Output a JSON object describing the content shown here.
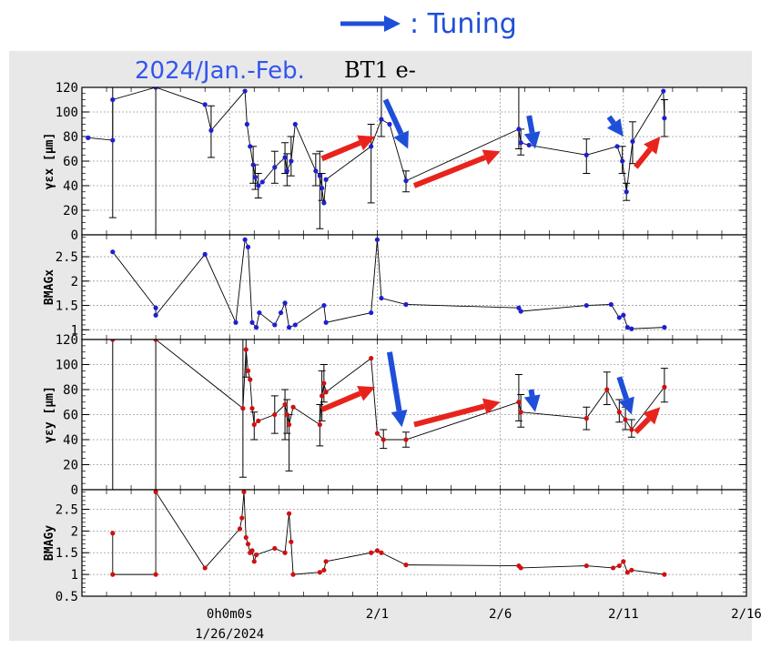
{
  "header": {
    "legend_label": ": Tuning",
    "period_label": "2024/Jan.-Feb.",
    "beam_label": "BT1 e-"
  },
  "colors": {
    "background": "#e8e8e8",
    "tuning_arrow": "#1f4fd8",
    "trend_arrow": "#e8231d",
    "x_series": "#1f1fd0",
    "y_series": "#d01010",
    "period_text": "#3355ee"
  },
  "xaxis": {
    "range": [
      "2024-01-20",
      "2024-02-16"
    ],
    "ticks": [
      {
        "date": "2024-01-26",
        "label": "0h0m0s"
      },
      {
        "date": "2024-02-01",
        "label": "2/1"
      },
      {
        "date": "2024-02-06",
        "label": "2/6"
      },
      {
        "date": "2024-02-11",
        "label": "2/11"
      },
      {
        "date": "2024-02-16",
        "label": "2/16"
      }
    ],
    "sub_label": "1/26/2024"
  },
  "chart_data": [
    {
      "type": "line",
      "ylabel": "γεx [μm]",
      "ylim": [
        0,
        120
      ],
      "yticks": [
        "0",
        "20",
        "40",
        "60",
        "80",
        "100",
        "120"
      ],
      "grid": true,
      "series": [
        {
          "color": "x",
          "points": [
            {
              "x": "2024-01-20 06:00",
              "y": 79
            },
            {
              "x": "2024-01-21 06:00",
              "y": 77,
              "lo": 14,
              "hi": 120
            },
            {
              "x": "2024-01-21 06:00",
              "y": 110
            },
            {
              "x": "2024-01-23 00:00",
              "y": 120,
              "lo": 0,
              "hi": 120
            },
            {
              "x": "2024-01-25 00:00",
              "y": 106
            },
            {
              "x": "2024-01-25 06:00",
              "y": 85,
              "lo": 63,
              "hi": 105
            },
            {
              "x": "2024-01-26 15:00",
              "y": 117
            },
            {
              "x": "2024-01-26 17:00",
              "y": 90
            },
            {
              "x": "2024-01-26 20:00",
              "y": 72
            },
            {
              "x": "2024-01-26 23:00",
              "y": 57,
              "lo": 42,
              "hi": 72
            },
            {
              "x": "2024-01-27 01:00",
              "y": 47,
              "lo": 37,
              "hi": 57
            },
            {
              "x": "2024-01-27 04:00",
              "y": 40,
              "lo": 30,
              "hi": 50
            },
            {
              "x": "2024-01-27 08:00",
              "y": 43
            },
            {
              "x": "2024-01-27 20:00",
              "y": 55,
              "lo": 42,
              "hi": 68
            },
            {
              "x": "2024-01-28 06:00",
              "y": 63,
              "lo": 50,
              "hi": 75
            },
            {
              "x": "2024-01-28 08:00",
              "y": 52,
              "lo": 40,
              "hi": 66
            },
            {
              "x": "2024-01-28 12:00",
              "y": 60,
              "lo": 48,
              "hi": 80
            },
            {
              "x": "2024-01-28 16:00",
              "y": 90
            },
            {
              "x": "2024-01-29 12:00",
              "y": 52,
              "lo": 40,
              "hi": 66
            },
            {
              "x": "2024-01-29 16:00",
              "y": 48,
              "lo": 5,
              "hi": 68
            },
            {
              "x": "2024-01-29 18:00",
              "y": 38,
              "lo": 28,
              "hi": 50
            },
            {
              "x": "2024-01-29 20:00",
              "y": 26
            },
            {
              "x": "2024-01-29 22:00",
              "y": 45
            },
            {
              "x": "2024-01-31 18:00",
              "y": 72,
              "lo": 26,
              "hi": 90
            },
            {
              "x": "2024-02-01 04:00",
              "y": 94,
              "lo": 80,
              "hi": 120
            },
            {
              "x": "2024-02-01 12:00",
              "y": 90
            },
            {
              "x": "2024-02-02 04:00",
              "y": 44,
              "lo": 35,
              "hi": 52
            },
            {
              "x": "2024-02-06 18:00",
              "y": 86,
              "lo": 70,
              "hi": 120
            },
            {
              "x": "2024-02-06 20:00",
              "y": 75,
              "lo": 65,
              "hi": 86
            },
            {
              "x": "2024-02-07 04:00",
              "y": 73
            },
            {
              "x": "2024-02-09 12:00",
              "y": 65,
              "lo": 50,
              "hi": 78
            },
            {
              "x": "2024-02-10 18:00",
              "y": 72
            },
            {
              "x": "2024-02-10 23:00",
              "y": 60,
              "lo": 50,
              "hi": 72
            },
            {
              "x": "2024-02-11 03:00",
              "y": 35,
              "lo": 28,
              "hi": 42
            },
            {
              "x": "2024-02-11 09:00",
              "y": 76,
              "lo": 58,
              "hi": 92
            },
            {
              "x": "2024-02-12 15:00",
              "y": 117
            },
            {
              "x": "2024-02-12 16:00",
              "y": 95,
              "lo": 80,
              "hi": 110
            }
          ]
        }
      ],
      "annotations": {
        "tuning_arrows": [
          {
            "from": [
              "2024-02-01 08:00",
              110
            ],
            "to": [
              "2024-02-02 06:00",
              70
            ]
          },
          {
            "from": [
              "2024-02-07 04:00",
              97
            ],
            "to": [
              "2024-02-07 10:00",
              70
            ]
          },
          {
            "from": [
              "2024-02-10 10:00",
              96
            ],
            "to": [
              "2024-02-11 00:00",
              80
            ]
          }
        ],
        "trend_arrows": [
          {
            "from": [
              "2024-01-29 18:00",
              62
            ],
            "to": [
              "2024-01-31 22:00",
              80
            ]
          },
          {
            "from": [
              "2024-02-02 12:00",
              40
            ],
            "to": [
              "2024-02-06 00:00",
              68
            ]
          },
          {
            "from": [
              "2024-02-11 12:00",
              55
            ],
            "to": [
              "2024-02-12 12:00",
              80
            ]
          }
        ]
      }
    },
    {
      "type": "line",
      "ylabel": "BMAGx",
      "ylim": [
        0.8,
        2.95
      ],
      "yticks": [
        "1",
        "1.5",
        "2",
        "2.5"
      ],
      "grid": true,
      "series": [
        {
          "color": "x",
          "points": [
            {
              "x": "2024-01-21 06:00",
              "y": 2.6
            },
            {
              "x": "2024-01-23 00:00",
              "y": 1.45
            },
            {
              "x": "2024-01-23 00:00",
              "y": 1.3
            },
            {
              "x": "2024-01-25 00:00",
              "y": 2.55
            },
            {
              "x": "2024-01-26 06:00",
              "y": 1.15
            },
            {
              "x": "2024-01-26 15:00",
              "y": 2.85
            },
            {
              "x": "2024-01-26 18:00",
              "y": 2.7
            },
            {
              "x": "2024-01-26 22:00",
              "y": 1.15
            },
            {
              "x": "2024-01-27 02:00",
              "y": 1.05
            },
            {
              "x": "2024-01-27 05:00",
              "y": 1.35
            },
            {
              "x": "2024-01-27 20:00",
              "y": 1.1
            },
            {
              "x": "2024-01-28 02:00",
              "y": 1.35
            },
            {
              "x": "2024-01-28 06:00",
              "y": 1.55
            },
            {
              "x": "2024-01-28 10:00",
              "y": 1.05
            },
            {
              "x": "2024-01-28 16:00",
              "y": 1.1
            },
            {
              "x": "2024-01-29 20:00",
              "y": 1.5
            },
            {
              "x": "2024-01-29 22:00",
              "y": 1.15
            },
            {
              "x": "2024-01-31 18:00",
              "y": 1.35
            },
            {
              "x": "2024-02-01 00:00",
              "y": 2.85
            },
            {
              "x": "2024-02-01 04:00",
              "y": 1.65
            },
            {
              "x": "2024-02-02 04:00",
              "y": 1.52
            },
            {
              "x": "2024-02-06 18:00",
              "y": 1.45
            },
            {
              "x": "2024-02-06 20:00",
              "y": 1.38
            },
            {
              "x": "2024-02-09 12:00",
              "y": 1.5
            },
            {
              "x": "2024-02-10 12:00",
              "y": 1.52
            },
            {
              "x": "2024-02-10 20:00",
              "y": 1.25
            },
            {
              "x": "2024-02-11 00:00",
              "y": 1.3
            },
            {
              "x": "2024-02-11 04:00",
              "y": 1.05
            },
            {
              "x": "2024-02-11 08:00",
              "y": 1.02
            },
            {
              "x": "2024-02-12 16:00",
              "y": 1.05
            }
          ]
        }
      ]
    },
    {
      "type": "line",
      "ylabel": "γεy [μm]",
      "ylim": [
        0,
        120
      ],
      "yticks": [
        "0",
        "20",
        "40",
        "60",
        "80",
        "100",
        "120"
      ],
      "grid": true,
      "series": [
        {
          "color": "y",
          "points": [
            {
              "x": "2024-01-21 06:00",
              "y": 120,
              "lo": 0,
              "hi": 120
            },
            {
              "x": "2024-01-23 00:00",
              "y": 120,
              "lo": 0,
              "hi": 120
            },
            {
              "x": "2024-01-26 13:00",
              "y": 65,
              "lo": 10,
              "hi": 120
            },
            {
              "x": "2024-01-26 16:00",
              "y": 112,
              "lo": 90,
              "hi": 120
            },
            {
              "x": "2024-01-26 18:00",
              "y": 95
            },
            {
              "x": "2024-01-26 20:00",
              "y": 88
            },
            {
              "x": "2024-01-26 22:00",
              "y": 65
            },
            {
              "x": "2024-01-27 00:00",
              "y": 52,
              "lo": 40,
              "hi": 62
            },
            {
              "x": "2024-01-27 04:00",
              "y": 55
            },
            {
              "x": "2024-01-27 20:00",
              "y": 60,
              "lo": 45,
              "hi": 75
            },
            {
              "x": "2024-01-28 06:00",
              "y": 68,
              "lo": 40,
              "hi": 80
            },
            {
              "x": "2024-01-28 08:00",
              "y": 60,
              "lo": 45,
              "hi": 72
            },
            {
              "x": "2024-01-28 10:00",
              "y": 52,
              "lo": 15,
              "hi": 60
            },
            {
              "x": "2024-01-28 14:00",
              "y": 66
            },
            {
              "x": "2024-01-29 16:00",
              "y": 52,
              "lo": 35,
              "hi": 68
            },
            {
              "x": "2024-01-29 18:00",
              "y": 75,
              "lo": 55,
              "hi": 95
            },
            {
              "x": "2024-01-29 20:00",
              "y": 85,
              "lo": 70,
              "hi": 100
            },
            {
              "x": "2024-01-29 22:00",
              "y": 78
            },
            {
              "x": "2024-01-31 18:00",
              "y": 105
            },
            {
              "x": "2024-02-01 00:00",
              "y": 45
            },
            {
              "x": "2024-02-01 06:00",
              "y": 40,
              "lo": 33,
              "hi": 48
            },
            {
              "x": "2024-02-02 04:00",
              "y": 40,
              "lo": 34,
              "hi": 46
            },
            {
              "x": "2024-02-06 18:00",
              "y": 70,
              "lo": 55,
              "hi": 92
            },
            {
              "x": "2024-02-06 20:00",
              "y": 62,
              "lo": 50,
              "hi": 76
            },
            {
              "x": "2024-02-09 12:00",
              "y": 57,
              "lo": 48,
              "hi": 66
            },
            {
              "x": "2024-02-10 08:00",
              "y": 80,
              "lo": 68,
              "hi": 94
            },
            {
              "x": "2024-02-10 20:00",
              "y": 62,
              "lo": 54,
              "hi": 72
            },
            {
              "x": "2024-02-11 02:00",
              "y": 56,
              "lo": 48,
              "hi": 66
            },
            {
              "x": "2024-02-11 08:00",
              "y": 48,
              "lo": 42,
              "hi": 56
            },
            {
              "x": "2024-02-12 16:00",
              "y": 82,
              "lo": 70,
              "hi": 97
            }
          ]
        }
      ],
      "annotations": {
        "tuning_arrows": [
          {
            "from": [
              "2024-02-01 12:00",
              110
            ],
            "to": [
              "2024-02-02 00:00",
              50
            ]
          },
          {
            "from": [
              "2024-02-07 06:00",
              80
            ],
            "to": [
              "2024-02-07 10:00",
              62
            ]
          },
          {
            "from": [
              "2024-02-10 20:00",
              90
            ],
            "to": [
              "2024-02-11 08:00",
              60
            ]
          }
        ],
        "trend_arrows": [
          {
            "from": [
              "2024-01-29 18:00",
              64
            ],
            "to": [
              "2024-01-31 22:00",
              82
            ]
          },
          {
            "from": [
              "2024-02-02 12:00",
              52
            ],
            "to": [
              "2024-02-06 00:00",
              70
            ]
          },
          {
            "from": [
              "2024-02-11 12:00",
              46
            ],
            "to": [
              "2024-02-12 12:00",
              66
            ]
          }
        ]
      }
    },
    {
      "type": "line",
      "ylabel": "BMAGy",
      "ylim": [
        0.5,
        2.95
      ],
      "yticks": [
        "0.5",
        "1",
        "1.5",
        "2",
        "2.5"
      ],
      "grid": true,
      "series": [
        {
          "color": "y",
          "points": [
            {
              "x": "2024-01-21 06:00",
              "y": 1.95
            },
            {
              "x": "2024-01-21 06:00",
              "y": 1.0
            },
            {
              "x": "2024-01-23 00:00",
              "y": 1.0
            },
            {
              "x": "2024-01-23 00:00",
              "y": 2.9
            },
            {
              "x": "2024-01-25 00:00",
              "y": 1.15
            },
            {
              "x": "2024-01-26 10:00",
              "y": 2.05
            },
            {
              "x": "2024-01-26 12:00",
              "y": 2.3
            },
            {
              "x": "2024-01-26 14:00",
              "y": 2.9
            },
            {
              "x": "2024-01-26 16:00",
              "y": 1.85
            },
            {
              "x": "2024-01-26 18:00",
              "y": 1.7
            },
            {
              "x": "2024-01-26 20:00",
              "y": 1.5
            },
            {
              "x": "2024-01-26 22:00",
              "y": 1.55
            },
            {
              "x": "2024-01-27 00:00",
              "y": 1.3
            },
            {
              "x": "2024-01-27 02:00",
              "y": 1.45
            },
            {
              "x": "2024-01-27 20:00",
              "y": 1.6
            },
            {
              "x": "2024-01-28 06:00",
              "y": 1.5
            },
            {
              "x": "2024-01-28 10:00",
              "y": 2.4
            },
            {
              "x": "2024-01-28 12:00",
              "y": 1.75
            },
            {
              "x": "2024-01-28 14:00",
              "y": 1.0
            },
            {
              "x": "2024-01-29 16:00",
              "y": 1.05
            },
            {
              "x": "2024-01-29 20:00",
              "y": 1.1
            },
            {
              "x": "2024-01-29 22:00",
              "y": 1.3
            },
            {
              "x": "2024-01-31 18:00",
              "y": 1.5
            },
            {
              "x": "2024-02-01 00:00",
              "y": 1.55
            },
            {
              "x": "2024-02-01 04:00",
              "y": 1.5
            },
            {
              "x": "2024-02-02 04:00",
              "y": 1.22
            },
            {
              "x": "2024-02-06 18:00",
              "y": 1.2
            },
            {
              "x": "2024-02-06 20:00",
              "y": 1.15
            },
            {
              "x": "2024-02-09 12:00",
              "y": 1.2
            },
            {
              "x": "2024-02-10 14:00",
              "y": 1.15
            },
            {
              "x": "2024-02-10 20:00",
              "y": 1.2
            },
            {
              "x": "2024-02-11 00:00",
              "y": 1.3
            },
            {
              "x": "2024-02-11 04:00",
              "y": 1.05
            },
            {
              "x": "2024-02-11 08:00",
              "y": 1.1
            },
            {
              "x": "2024-02-12 16:00",
              "y": 1.0
            }
          ]
        }
      ]
    }
  ]
}
